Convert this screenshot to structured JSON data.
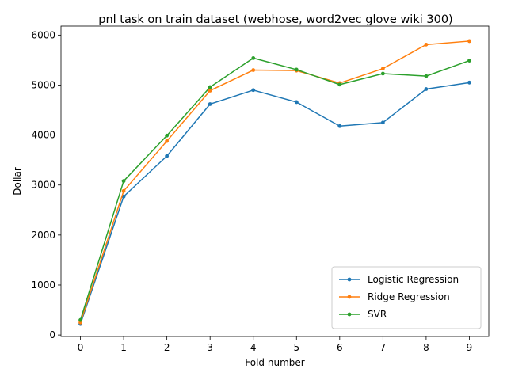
{
  "chart_data": {
    "type": "line",
    "title": "pnl task on train dataset (webhose, word2vec glove wiki 300)",
    "xlabel": "Fold number",
    "ylabel": "Dollar",
    "x": [
      0,
      1,
      2,
      3,
      4,
      5,
      6,
      7,
      8,
      9
    ],
    "xlim": [
      -0.45,
      9.45
    ],
    "ylim": [
      -30,
      6180
    ],
    "xticks": [
      0,
      1,
      2,
      3,
      4,
      5,
      6,
      7,
      8,
      9
    ],
    "yticks": [
      0,
      1000,
      2000,
      3000,
      4000,
      5000,
      6000
    ],
    "grid": false,
    "legend_position": "lower-right",
    "series": [
      {
        "name": "Logistic Regression",
        "color": "#1f77b4",
        "values": [
          220,
          2770,
          3580,
          4620,
          4900,
          4660,
          4180,
          4250,
          4920,
          5050
        ]
      },
      {
        "name": "Ridge Regression",
        "color": "#ff7f0e",
        "values": [
          250,
          2880,
          3880,
          4890,
          5300,
          5290,
          5040,
          5330,
          5810,
          5880
        ]
      },
      {
        "name": "SVR",
        "color": "#2ca02c",
        "values": [
          300,
          3080,
          3990,
          4960,
          5540,
          5310,
          5010,
          5230,
          5180,
          5490
        ]
      }
    ]
  }
}
